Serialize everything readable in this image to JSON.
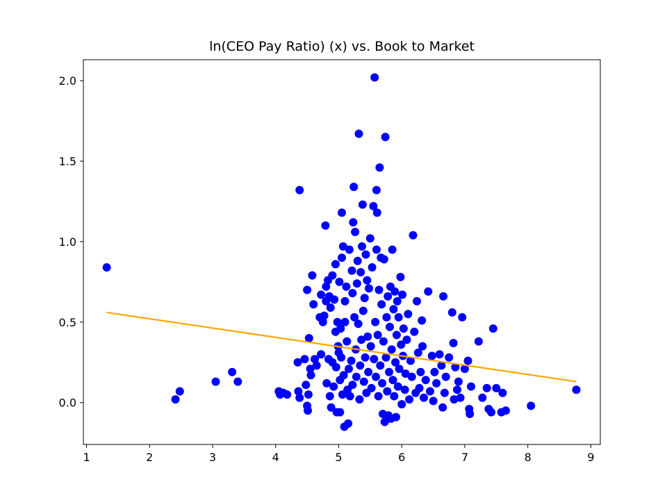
{
  "chart_data": {
    "type": "scatter",
    "title": "ln(CEO Pay Ratio) (x) vs. Book to Market",
    "xlabel": "",
    "ylabel": "",
    "xlim": [
      0.95,
      9.15
    ],
    "ylim": [
      -0.26,
      2.13
    ],
    "x_ticks": [
      1,
      2,
      3,
      4,
      5,
      6,
      7,
      8,
      9
    ],
    "y_ticks": [
      0.0,
      0.5,
      1.0,
      1.5,
      2.0
    ],
    "x_tick_labels": [
      "1",
      "2",
      "3",
      "4",
      "5",
      "6",
      "7",
      "8",
      "9"
    ],
    "y_tick_labels": [
      "0.0",
      "0.5",
      "1.0",
      "1.5",
      "2.0"
    ],
    "grid": false,
    "point_color": "#0000ff",
    "fit_color": "#ffa500",
    "fit_line": {
      "x": [
        1.32,
        8.77
      ],
      "y": [
        0.56,
        0.13
      ]
    },
    "points": [
      [
        1.32,
        0.84
      ],
      [
        2.41,
        0.02
      ],
      [
        2.48,
        0.07
      ],
      [
        3.05,
        0.13
      ],
      [
        3.31,
        0.19
      ],
      [
        3.4,
        0.13
      ],
      [
        4.05,
        0.07
      ],
      [
        4.07,
        0.05
      ],
      [
        4.12,
        0.06
      ],
      [
        4.18,
        0.05
      ],
      [
        4.35,
        0.25
      ],
      [
        4.38,
        1.32
      ],
      [
        4.36,
        0.07
      ],
      [
        4.38,
        0.03
      ],
      [
        4.46,
        0.27
      ],
      [
        4.48,
        0.11
      ],
      [
        4.5,
        -0.02
      ],
      [
        4.51,
        -0.05
      ],
      [
        4.52,
        0.05
      ],
      [
        4.5,
        0.7
      ],
      [
        4.53,
        0.4
      ],
      [
        4.55,
        0.21
      ],
      [
        4.56,
        0.17
      ],
      [
        4.58,
        0.79
      ],
      [
        4.6,
        0.61
      ],
      [
        4.62,
        0.27
      ],
      [
        4.65,
        0.23
      ],
      [
        4.7,
        0.53
      ],
      [
        4.72,
        0.67
      ],
      [
        4.72,
        0.3
      ],
      [
        4.75,
        0.5
      ],
      [
        4.77,
        0.54
      ],
      [
        4.79,
        1.1
      ],
      [
        4.8,
        0.72
      ],
      [
        4.8,
        0.63
      ],
      [
        4.81,
        0.12
      ],
      [
        4.83,
        0.76
      ],
      [
        4.84,
        0.27
      ],
      [
        4.85,
        0.66
      ],
      [
        4.86,
        0.04
      ],
      [
        4.87,
        0.59
      ],
      [
        4.88,
        -0.03
      ],
      [
        4.9,
        0.25
      ],
      [
        4.9,
        0.79
      ],
      [
        4.92,
        0.1
      ],
      [
        4.93,
        0.64
      ],
      [
        4.95,
        0.86
      ],
      [
        4.95,
        0.44
      ],
      [
        4.96,
        0.22
      ],
      [
        4.97,
        -0.06
      ],
      [
        4.98,
        0.5
      ],
      [
        4.99,
        0.35
      ],
      [
        5.0,
        0.31
      ],
      [
        5.01,
        0.75
      ],
      [
        5.02,
        -0.06
      ],
      [
        5.02,
        0.14
      ],
      [
        5.03,
        0.46
      ],
      [
        5.04,
        0.28
      ],
      [
        5.05,
        1.18
      ],
      [
        5.05,
        0.9
      ],
      [
        5.06,
        0.05
      ],
      [
        5.07,
        0.97
      ],
      [
        5.08,
        0.17
      ],
      [
        5.09,
        -0.15
      ],
      [
        5.1,
        0.5
      ],
      [
        5.1,
        0.63
      ],
      [
        5.12,
        0.72
      ],
      [
        5.13,
        0.38
      ],
      [
        5.14,
        0.08
      ],
      [
        5.15,
        -0.13
      ],
      [
        5.16,
        0.21
      ],
      [
        5.17,
        0.95
      ],
      [
        5.18,
        0.04
      ],
      [
        5.2,
        0.26
      ],
      [
        5.21,
        0.82
      ],
      [
        5.22,
        0.68
      ],
      [
        5.22,
        0.11
      ],
      [
        5.23,
        1.12
      ],
      [
        5.24,
        1.34
      ],
      [
        5.25,
        0.53
      ],
      [
        5.26,
        1.06
      ],
      [
        5.27,
        0.33
      ],
      [
        5.28,
        0.16
      ],
      [
        5.29,
        0.74
      ],
      [
        5.3,
        0.88
      ],
      [
        5.31,
        0.49
      ],
      [
        5.32,
        1.67
      ],
      [
        5.33,
        0.02
      ],
      [
        5.34,
        0.23
      ],
      [
        5.35,
        0.81
      ],
      [
        5.36,
        0.39
      ],
      [
        5.37,
        0.97
      ],
      [
        5.38,
        1.23
      ],
      [
        5.39,
        0.57
      ],
      [
        5.4,
        0.13
      ],
      [
        5.41,
        0.65
      ],
      [
        5.42,
        0.28
      ],
      [
        5.43,
        0.92
      ],
      [
        5.44,
        0.06
      ],
      [
        5.45,
        0.76
      ],
      [
        5.46,
        0.41
      ],
      [
        5.47,
        0.19
      ],
      [
        5.48,
        0.71
      ],
      [
        5.5,
        1.02
      ],
      [
        5.51,
        0.35
      ],
      [
        5.52,
        0.09
      ],
      [
        5.53,
        0.84
      ],
      [
        5.55,
        1.22
      ],
      [
        5.56,
        0.27
      ],
      [
        5.57,
        2.02
      ],
      [
        5.58,
        0.5
      ],
      [
        5.59,
        0.16
      ],
      [
        5.6,
        1.32
      ],
      [
        5.6,
        0.95
      ],
      [
        5.61,
        1.18
      ],
      [
        5.62,
        0.42
      ],
      [
        5.63,
        0.04
      ],
      [
        5.64,
        0.7
      ],
      [
        5.65,
        1.46
      ],
      [
        5.66,
        0.23
      ],
      [
        5.67,
        0.9
      ],
      [
        5.68,
        0.61
      ],
      [
        5.69,
        0.12
      ],
      [
        5.7,
        -0.07
      ],
      [
        5.71,
        0.38
      ],
      [
        5.72,
        0.89
      ],
      [
        5.73,
        -0.12
      ],
      [
        5.74,
        1.65
      ],
      [
        5.75,
        0.28
      ],
      [
        5.76,
        0.53
      ],
      [
        5.77,
        0.07
      ],
      [
        5.78,
        0.66
      ],
      [
        5.79,
        -0.08
      ],
      [
        5.8,
        0.19
      ],
      [
        5.81,
        0.47
      ],
      [
        5.82,
        0.72
      ],
      [
        5.83,
        -0.1
      ],
      [
        5.84,
        0.33
      ],
      [
        5.85,
        0.95
      ],
      [
        5.86,
        0.14
      ],
      [
        5.87,
        0.58
      ],
      [
        5.88,
        0.04
      ],
      [
        5.89,
        0.69
      ],
      [
        5.9,
        0.25
      ],
      [
        5.91,
        -0.09
      ],
      [
        5.92,
        0.42
      ],
      [
        5.93,
        0.63
      ],
      [
        5.94,
        0.1
      ],
      [
        5.95,
        0.53
      ],
      [
        5.96,
        0.21
      ],
      [
        5.98,
        0.78
      ],
      [
        5.99,
        0.36
      ],
      [
        6.0,
        -0.01
      ],
      [
        6.01,
        0.67
      ],
      [
        6.02,
        0.29
      ],
      [
        6.03,
        0.46
      ],
      [
        6.05,
        0.08
      ],
      [
        6.06,
        0.18
      ],
      [
        6.08,
        0.39
      ],
      [
        6.1,
        0.55
      ],
      [
        6.12,
        0.02
      ],
      [
        6.14,
        0.26
      ],
      [
        6.16,
        0.16
      ],
      [
        6.18,
        1.04
      ],
      [
        6.2,
        0.44
      ],
      [
        6.22,
        0.06
      ],
      [
        6.24,
        0.63
      ],
      [
        6.26,
        0.31
      ],
      [
        6.28,
        0.09
      ],
      [
        6.3,
        0.19
      ],
      [
        6.32,
        0.51
      ],
      [
        6.33,
        0.35
      ],
      [
        6.35,
        0.03
      ],
      [
        6.38,
        0.14
      ],
      [
        6.42,
        0.69
      ],
      [
        6.45,
        0.07
      ],
      [
        6.48,
        0.29
      ],
      [
        6.5,
        0.01
      ],
      [
        6.52,
        0.19
      ],
      [
        6.55,
        0.12
      ],
      [
        6.6,
        0.3
      ],
      [
        6.63,
        0.23
      ],
      [
        6.65,
        -0.03
      ],
      [
        6.66,
        0.66
      ],
      [
        6.68,
        0.06
      ],
      [
        6.7,
        0.16
      ],
      [
        6.75,
        0.28
      ],
      [
        6.8,
        0.56
      ],
      [
        6.82,
        0.37
      ],
      [
        6.83,
        0.02
      ],
      [
        6.85,
        0.22
      ],
      [
        6.88,
        0.08
      ],
      [
        6.9,
        0.13
      ],
      [
        6.93,
        0.03
      ],
      [
        6.96,
        0.53
      ],
      [
        7.0,
        0.21
      ],
      [
        7.05,
        0.26
      ],
      [
        7.07,
        -0.04
      ],
      [
        7.08,
        -0.07
      ],
      [
        7.1,
        0.1
      ],
      [
        7.22,
        0.38
      ],
      [
        7.28,
        0.03
      ],
      [
        7.35,
        0.09
      ],
      [
        7.38,
        -0.04
      ],
      [
        7.42,
        -0.06
      ],
      [
        7.45,
        0.46
      ],
      [
        7.5,
        0.09
      ],
      [
        7.58,
        -0.06
      ],
      [
        7.6,
        0.06
      ],
      [
        7.65,
        -0.05
      ],
      [
        8.05,
        -0.02
      ],
      [
        8.77,
        0.08
      ]
    ]
  }
}
